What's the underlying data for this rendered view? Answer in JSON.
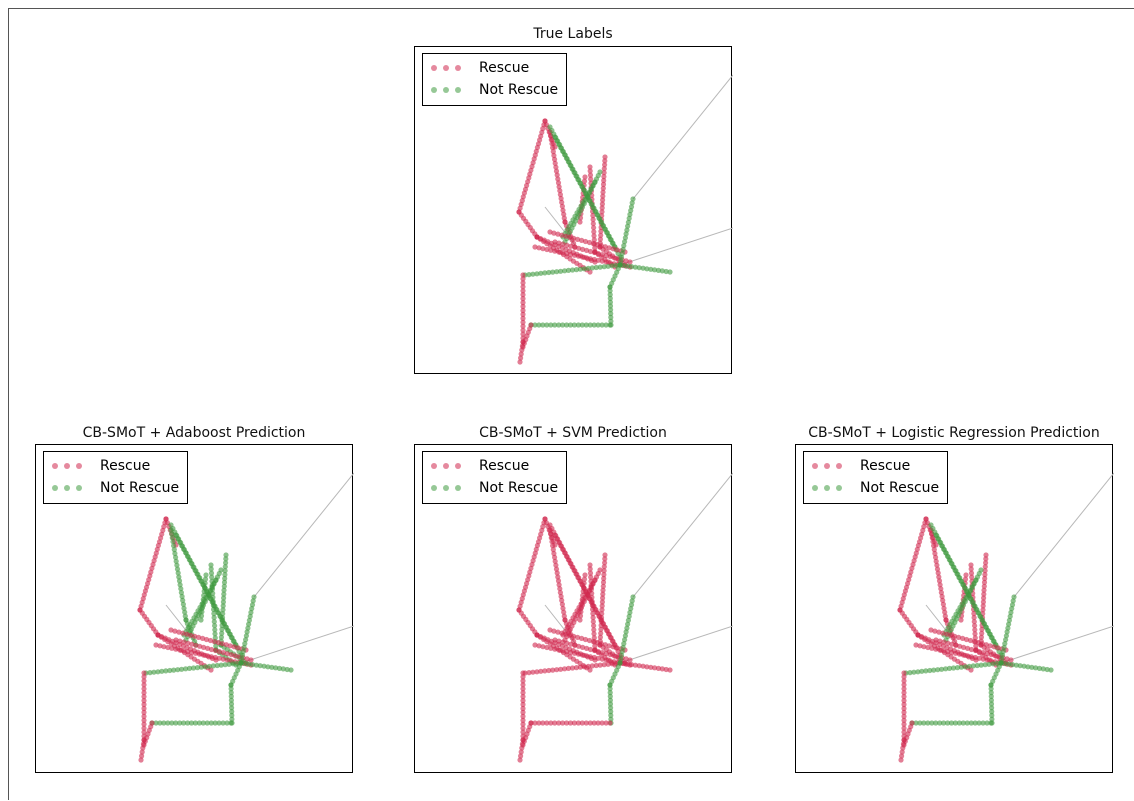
{
  "colors": {
    "rescue": "#d0284f",
    "not_rescue": "#3f9a3f",
    "track": "#b8b8b8"
  },
  "chart_data": [
    {
      "type": "scatter",
      "title": "True Labels",
      "legend": {
        "position": "top-left",
        "entries": [
          "Rescue",
          "Not Rescue"
        ]
      },
      "grid": false,
      "variant": "true"
    },
    {
      "type": "scatter",
      "title": "CB-SMoT + Adaboost Prediction",
      "legend": {
        "position": "top-left",
        "entries": [
          "Rescue",
          "Not Rescue"
        ]
      },
      "grid": false,
      "variant": "adaboost"
    },
    {
      "type": "scatter",
      "title": "CB-SMoT + SVM Prediction",
      "legend": {
        "position": "top-left",
        "entries": [
          "Rescue",
          "Not Rescue"
        ]
      },
      "grid": false,
      "variant": "svm"
    },
    {
      "type": "scatter",
      "title": "CB-SMoT + Logistic Regression Prediction",
      "legend": {
        "position": "top-left",
        "entries": [
          "Rescue",
          "Not Rescue"
        ]
      },
      "grid": false,
      "variant": "logreg"
    }
  ]
}
